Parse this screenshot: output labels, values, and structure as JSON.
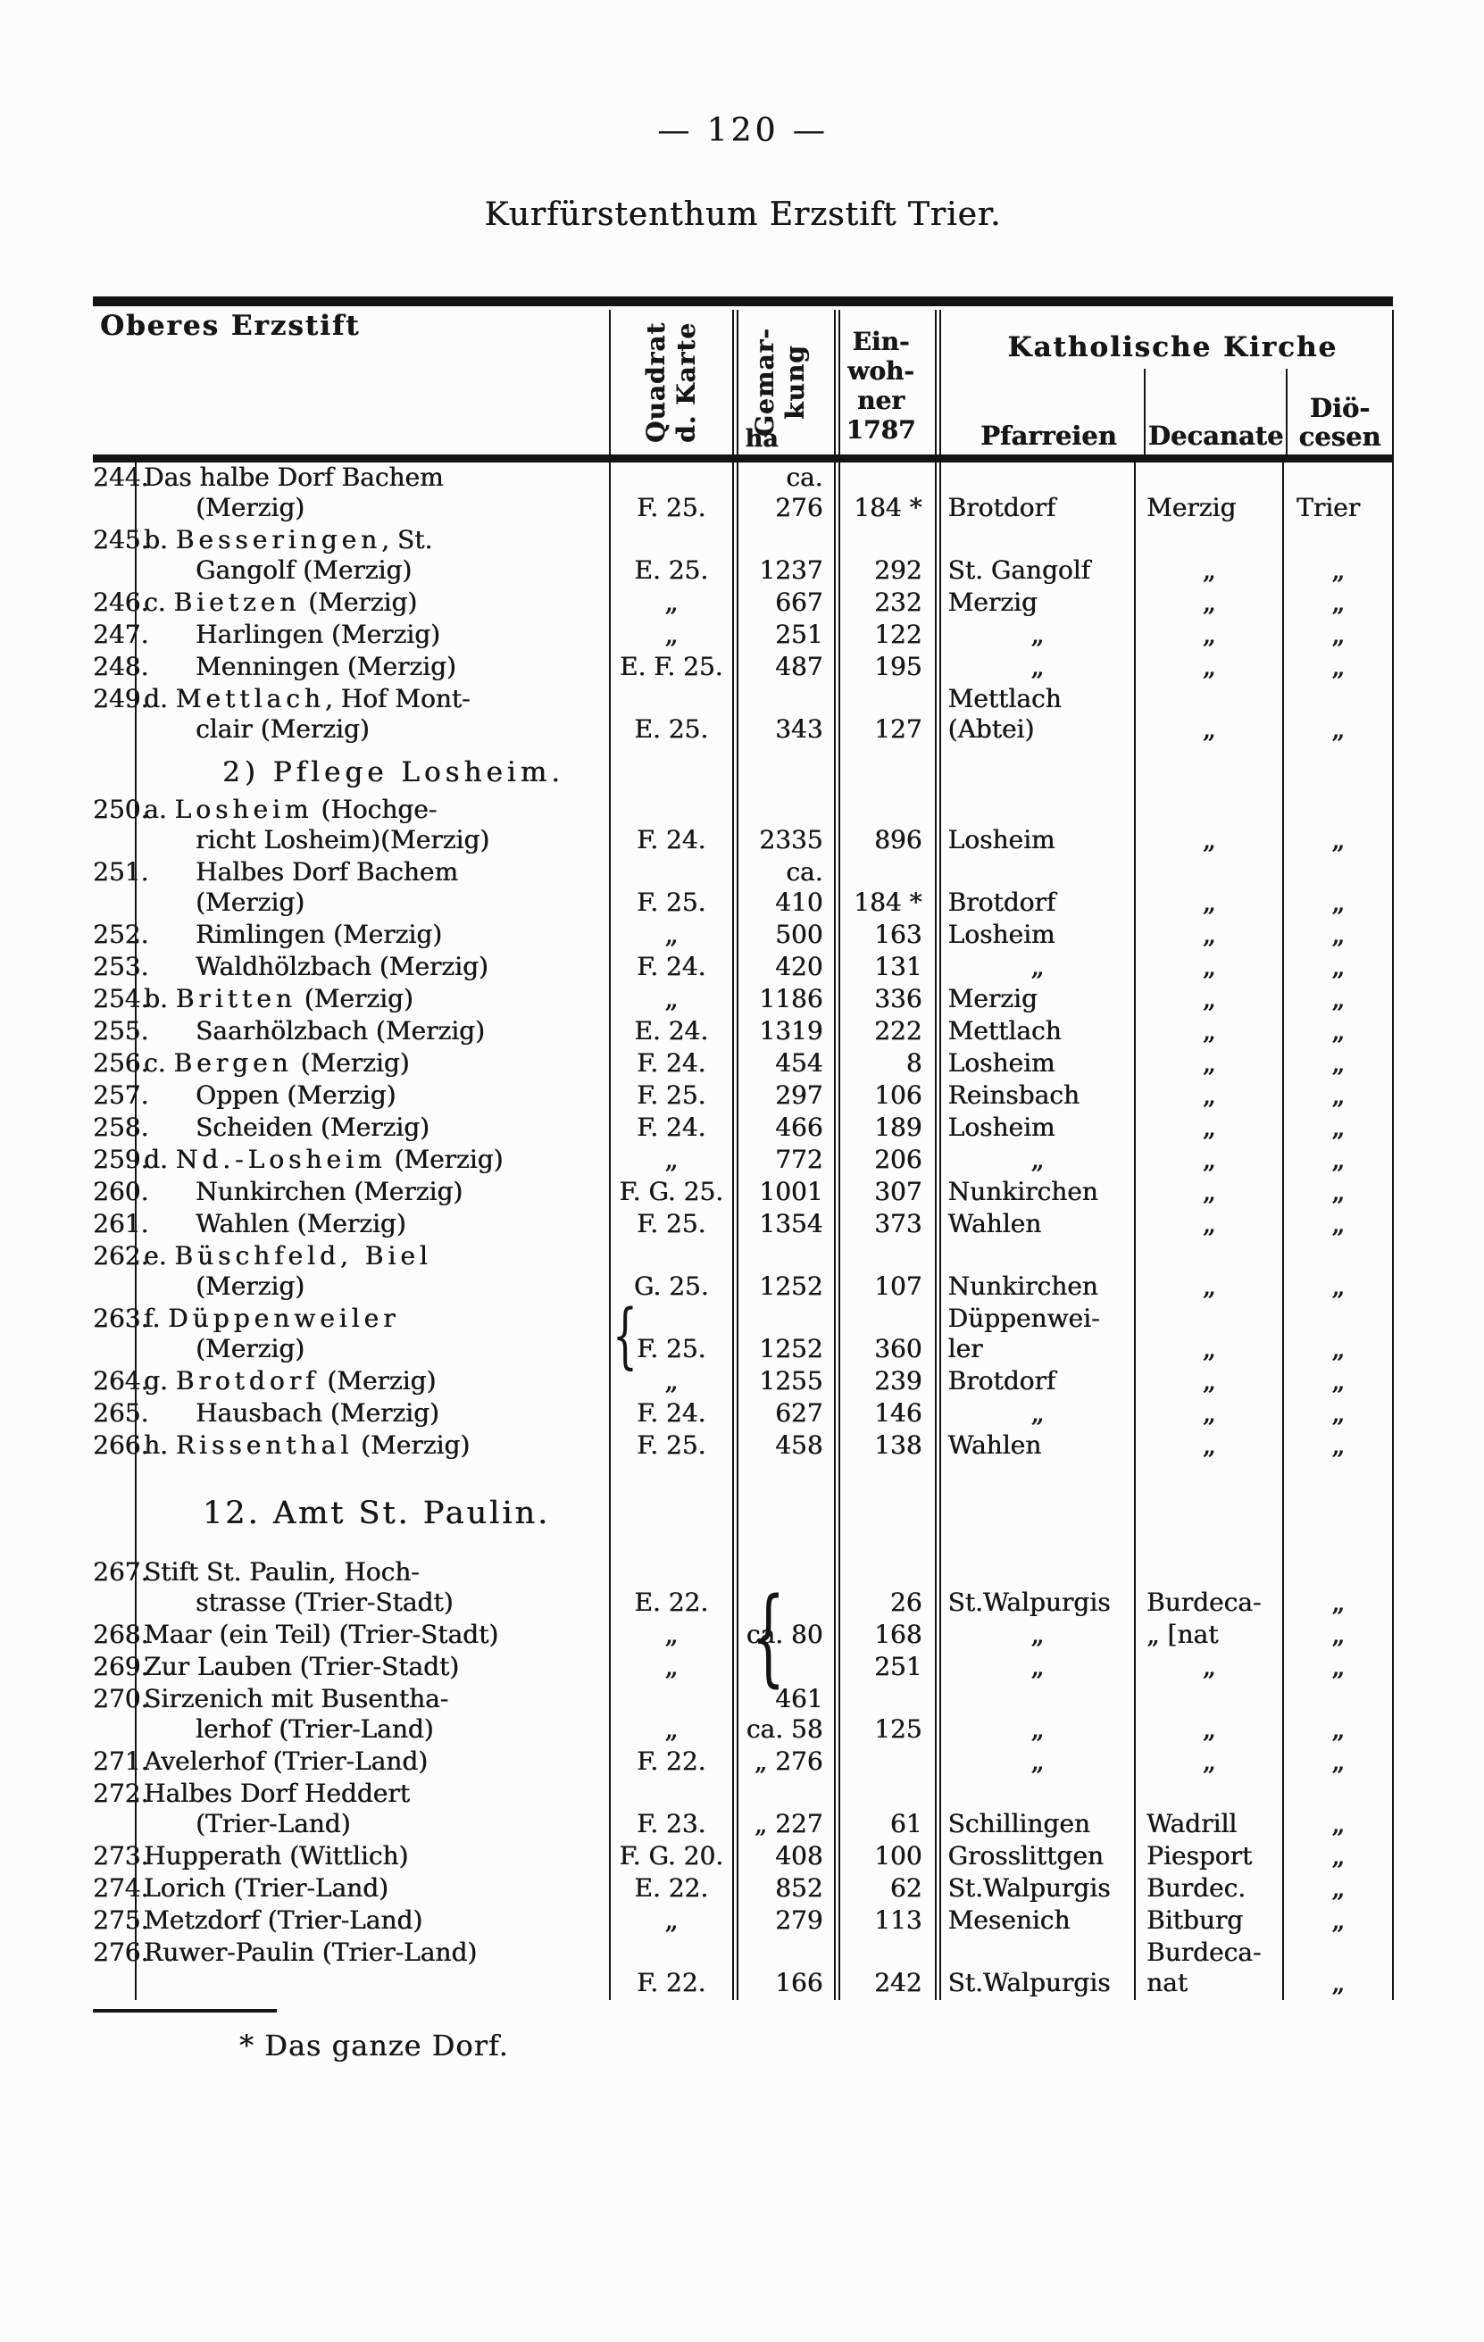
{
  "page": {
    "number": "—  120  —",
    "title": "Kurfürstenthum Erzstift Trier.",
    "footnote": "* Das ganze Dorf."
  },
  "table": {
    "header": {
      "region": "Oberes Erzstift",
      "quadrant": "Quadrat\nd. Karte",
      "area": "Gemar-\nkung",
      "area_unit": "ha",
      "population": "Ein-\nwoh-\nner\n1787",
      "church_group": "Katholische Kirche",
      "parishes": "Pfarreien",
      "deaneries": "Decanate",
      "dioceses": "Diö-\ncesen"
    },
    "rows": [
      {
        "no": "244.",
        "name": [
          {
            "seg": [
              {
                "t": "Das halbe Dorf Bachem"
              }
            ]
          },
          {
            "seg": [
              {
                "t": "(Merzig)"
              }
            ],
            "cont": true
          }
        ],
        "quad": "F. 25.",
        "gem": [
          "ca. 276"
        ],
        "einw": "184 *",
        "pfar": [
          "Brotdorf"
        ],
        "dec": [
          "Merzig"
        ],
        "dio": "Trier"
      },
      {
        "no": "245.",
        "name": [
          {
            "seg": [
              {
                "t": "b. "
              },
              {
                "t": "Besseringen",
                "sp": true
              },
              {
                "t": ", St."
              }
            ]
          },
          {
            "seg": [
              {
                "t": "Gangolf (Merzig)"
              }
            ],
            "cont": true
          }
        ],
        "quad": "E. 25.",
        "gem": [
          "1237"
        ],
        "einw": "292",
        "pfar": [
          "St. Gangolf"
        ],
        "dec": [
          "„"
        ],
        "dio": "„"
      },
      {
        "no": "246.",
        "name": [
          {
            "seg": [
              {
                "t": "c. "
              },
              {
                "t": "Bietzen",
                "sp": true
              },
              {
                "t": " (Merzig)"
              }
            ]
          }
        ],
        "quad": "„",
        "gem": [
          "667"
        ],
        "einw": "232",
        "pfar": [
          "Merzig"
        ],
        "dec": [
          "„"
        ],
        "dio": "„"
      },
      {
        "no": "247.",
        "name": [
          {
            "seg": [
              {
                "t": "Harlingen (Merzig)"
              }
            ],
            "cont": true
          }
        ],
        "quad": "„",
        "gem": [
          "251"
        ],
        "einw": "122",
        "pfar": [
          "„"
        ],
        "dec": [
          "„"
        ],
        "dio": "„"
      },
      {
        "no": "248.",
        "name": [
          {
            "seg": [
              {
                "t": "Menningen (Merzig)"
              }
            ],
            "cont": true
          }
        ],
        "quad": "E. F. 25.",
        "gem": [
          "487"
        ],
        "einw": "195",
        "pfar": [
          "„"
        ],
        "dec": [
          "„"
        ],
        "dio": "„"
      },
      {
        "no": "249.",
        "name": [
          {
            "seg": [
              {
                "t": "d. "
              },
              {
                "t": "Mettlach",
                "sp": true
              },
              {
                "t": ", Hof Mont-"
              }
            ]
          },
          {
            "seg": [
              {
                "t": "clair (Merzig)"
              }
            ],
            "cont": true
          }
        ],
        "quad": "E. 25.",
        "gem": [
          "343"
        ],
        "einw": "127",
        "pfar": [
          "Mettlach",
          "(Abtei)"
        ],
        "dec": [
          "„"
        ],
        "dio": "„"
      },
      {
        "section": "2) Pflege Losheim.",
        "style": "small"
      },
      {
        "no": "250.",
        "name": [
          {
            "seg": [
              {
                "t": "a. "
              },
              {
                "t": "Losheim",
                "sp": true
              },
              {
                "t": " (Hochge-"
              }
            ]
          },
          {
            "seg": [
              {
                "t": "richt Losheim)(Merzig)"
              }
            ],
            "cont": true
          }
        ],
        "quad": "F. 24.",
        "gem": [
          "2335"
        ],
        "einw": "896",
        "pfar": [
          "Losheim"
        ],
        "dec": [
          "„"
        ],
        "dio": "„"
      },
      {
        "no": "251.",
        "name": [
          {
            "seg": [
              {
                "t": "Halbes Dorf Bachem"
              }
            ],
            "cont": true
          },
          {
            "seg": [
              {
                "t": "(Merzig)"
              }
            ],
            "cont": true
          }
        ],
        "quad": "F. 25.",
        "gem": [
          "ca. 410"
        ],
        "einw": "184 *",
        "pfar": [
          "Brotdorf"
        ],
        "dec": [
          "„"
        ],
        "dio": "„"
      },
      {
        "no": "252.",
        "name": [
          {
            "seg": [
              {
                "t": "Rimlingen (Merzig)"
              }
            ],
            "cont": true
          }
        ],
        "quad": "„",
        "gem": [
          "500"
        ],
        "einw": "163",
        "pfar": [
          "Losheim"
        ],
        "dec": [
          "„"
        ],
        "dio": "„"
      },
      {
        "no": "253.",
        "name": [
          {
            "seg": [
              {
                "t": "Waldhölzbach (Merzig)"
              }
            ],
            "cont": true
          }
        ],
        "quad": "F. 24.",
        "gem": [
          "420"
        ],
        "einw": "131",
        "pfar": [
          "„"
        ],
        "dec": [
          "„"
        ],
        "dio": "„"
      },
      {
        "no": "254.",
        "name": [
          {
            "seg": [
              {
                "t": "b. "
              },
              {
                "t": "Britten",
                "sp": true
              },
              {
                "t": " (Merzig)"
              }
            ]
          }
        ],
        "quad": "„",
        "gem": [
          "1186"
        ],
        "einw": "336",
        "pfar": [
          "Merzig"
        ],
        "dec": [
          "„"
        ],
        "dio": "„"
      },
      {
        "no": "255.",
        "name": [
          {
            "seg": [
              {
                "t": "Saarhölzbach (Merzig)"
              }
            ],
            "cont": true
          }
        ],
        "quad": "E. 24.",
        "gem": [
          "1319"
        ],
        "einw": "222",
        "pfar": [
          "Mettlach"
        ],
        "dec": [
          "„"
        ],
        "dio": "„"
      },
      {
        "no": "256.",
        "name": [
          {
            "seg": [
              {
                "t": "c. "
              },
              {
                "t": "Bergen",
                "sp": true
              },
              {
                "t": " (Merzig)"
              }
            ]
          }
        ],
        "quad": "F. 24.",
        "gem": [
          "454"
        ],
        "einw": "8",
        "pfar": [
          "Losheim"
        ],
        "dec": [
          "„"
        ],
        "dio": "„"
      },
      {
        "no": "257.",
        "name": [
          {
            "seg": [
              {
                "t": "Oppen (Merzig)"
              }
            ],
            "cont": true
          }
        ],
        "quad": "F. 25.",
        "gem": [
          "297"
        ],
        "einw": "106",
        "pfar": [
          "Reinsbach"
        ],
        "dec": [
          "„"
        ],
        "dio": "„"
      },
      {
        "no": "258.",
        "name": [
          {
            "seg": [
              {
                "t": "Scheiden (Merzig)"
              }
            ],
            "cont": true
          }
        ],
        "quad": "F. 24.",
        "gem": [
          "466"
        ],
        "einw": "189",
        "pfar": [
          "Losheim"
        ],
        "dec": [
          "„"
        ],
        "dio": "„"
      },
      {
        "no": "259.",
        "name": [
          {
            "seg": [
              {
                "t": "d. "
              },
              {
                "t": "Nd.-Losheim",
                "sp": true
              },
              {
                "t": " (Merzig)"
              }
            ]
          }
        ],
        "quad": "„",
        "gem": [
          "772"
        ],
        "einw": "206",
        "pfar": [
          "„"
        ],
        "dec": [
          "„"
        ],
        "dio": "„"
      },
      {
        "no": "260.",
        "name": [
          {
            "seg": [
              {
                "t": "Nunkirchen (Merzig)"
              }
            ],
            "cont": true
          }
        ],
        "quad": "F. G. 25.",
        "gem": [
          "1001"
        ],
        "einw": "307",
        "pfar": [
          "Nunkirchen"
        ],
        "dec": [
          "„"
        ],
        "dio": "„"
      },
      {
        "no": "261.",
        "name": [
          {
            "seg": [
              {
                "t": "Wahlen (Merzig)"
              }
            ],
            "cont": true
          }
        ],
        "quad": "F. 25.",
        "gem": [
          "1354"
        ],
        "einw": "373",
        "pfar": [
          "Wahlen"
        ],
        "dec": [
          "„"
        ],
        "dio": "„"
      },
      {
        "no": "262.",
        "name": [
          {
            "seg": [
              {
                "t": "e. "
              },
              {
                "t": "Büschfeld, Biel",
                "sp": true
              }
            ]
          },
          {
            "seg": [
              {
                "t": "(Merzig)"
              }
            ],
            "cont": true
          }
        ],
        "quad": "G. 25.",
        "gem": [
          "1252"
        ],
        "einw": "107",
        "pfar": [
          "Nunkirchen"
        ],
        "dec": [
          "„"
        ],
        "dio": "„"
      },
      {
        "no": "263.",
        "name": [
          {
            "seg": [
              {
                "t": "f. "
              },
              {
                "t": "Düppenweiler",
                "sp": true
              }
            ]
          },
          {
            "seg": [
              {
                "t": "(Merzig)"
              }
            ],
            "cont": true
          }
        ],
        "quad": "F. 25.",
        "quadBrace": true,
        "gem": [
          "1252"
        ],
        "einw": "360",
        "pfar": [
          "Düppenwei-",
          "ler"
        ],
        "dec": [
          "„"
        ],
        "dio": "„"
      },
      {
        "no": "264.",
        "name": [
          {
            "seg": [
              {
                "t": "g. "
              },
              {
                "t": "Brotdorf",
                "sp": true
              },
              {
                "t": " (Merzig)"
              }
            ]
          }
        ],
        "quad": "„",
        "gem": [
          "1255"
        ],
        "einw": "239",
        "pfar": [
          "Brotdorf"
        ],
        "dec": [
          "„"
        ],
        "dio": "„"
      },
      {
        "no": "265.",
        "name": [
          {
            "seg": [
              {
                "t": "Hausbach (Merzig)"
              }
            ],
            "cont": true
          }
        ],
        "quad": "F. 24.",
        "gem": [
          "627"
        ],
        "einw": "146",
        "pfar": [
          "„"
        ],
        "dec": [
          "„"
        ],
        "dio": "„"
      },
      {
        "no": "266.",
        "name": [
          {
            "seg": [
              {
                "t": "h. "
              },
              {
                "t": "Rissenthal",
                "sp": true
              },
              {
                "t": " (Merzig)"
              }
            ]
          }
        ],
        "quad": "F. 25.",
        "gem": [
          "458"
        ],
        "einw": "138",
        "pfar": [
          "Wahlen"
        ],
        "dec": [
          "„"
        ],
        "dio": "„"
      },
      {
        "section": "12. Amt St. Paulin.",
        "style": "big"
      },
      {
        "no": "267.",
        "name": [
          {
            "seg": [
              {
                "t": "Stift St. Paulin, Hoch-"
              }
            ]
          },
          {
            "seg": [
              {
                "t": "strasse (Trier-Stadt)"
              }
            ],
            "cont": true
          }
        ],
        "quad": "E. 22.",
        "gem": [
          ""
        ],
        "einw": "26",
        "pfar": [
          "St.Walpurgis"
        ],
        "dec": [
          "Burdeca-"
        ],
        "dio": "„"
      },
      {
        "no": "268.",
        "name": [
          {
            "seg": [
              {
                "t": "Maar (ein Teil) (Trier-Stadt)"
              }
            ]
          }
        ],
        "quad": "„",
        "gem": [
          "ca. 80"
        ],
        "gemBrace": true,
        "einw": "168",
        "pfar": [
          "„"
        ],
        "dec": [
          "„ [nat"
        ],
        "dio": "„"
      },
      {
        "no": "269.",
        "name": [
          {
            "seg": [
              {
                "t": "Zur Lauben (Trier-Stadt)"
              }
            ]
          }
        ],
        "quad": "„",
        "gem": [
          ""
        ],
        "einw": "251",
        "pfar": [
          "„"
        ],
        "dec": [
          "„"
        ],
        "dio": "„"
      },
      {
        "no": "270.",
        "name": [
          {
            "seg": [
              {
                "t": "Sirzenich mit Busentha-"
              }
            ]
          },
          {
            "seg": [
              {
                "t": "lerhof (Trier-Land)"
              }
            ],
            "cont": true
          }
        ],
        "quad": "„",
        "gem": [
          "461",
          "ca. 58"
        ],
        "einw": "125",
        "pfar": [
          "„"
        ],
        "dec": [
          "„"
        ],
        "dio": "„"
      },
      {
        "no": "271.",
        "name": [
          {
            "seg": [
              {
                "t": "Avelerhof (Trier-Land)"
              }
            ]
          }
        ],
        "quad": "F. 22.",
        "gem": [
          "„ 276"
        ],
        "einw": "",
        "pfar": [
          "„"
        ],
        "dec": [
          "„"
        ],
        "dio": "„"
      },
      {
        "no": "272.",
        "name": [
          {
            "seg": [
              {
                "t": "Halbes Dorf Heddert"
              }
            ]
          },
          {
            "seg": [
              {
                "t": "(Trier-Land)"
              }
            ],
            "cont": true
          }
        ],
        "quad": "F. 23.",
        "gem": [
          "„ 227"
        ],
        "einw": "61",
        "pfar": [
          "Schillingen"
        ],
        "dec": [
          "Wadrill"
        ],
        "dio": "„"
      },
      {
        "no": "273.",
        "name": [
          {
            "seg": [
              {
                "t": "Hupperath (Wittlich)"
              }
            ]
          }
        ],
        "quad": "F. G. 20.",
        "gem": [
          "408"
        ],
        "einw": "100",
        "pfar": [
          "Grosslittgen"
        ],
        "dec": [
          "Piesport"
        ],
        "dio": "„"
      },
      {
        "no": "274.",
        "name": [
          {
            "seg": [
              {
                "t": "Lorich (Trier-Land)"
              }
            ]
          }
        ],
        "quad": "E. 22.",
        "gem": [
          "852"
        ],
        "einw": "62",
        "pfar": [
          "St.Walpurgis"
        ],
        "dec": [
          "Burdec."
        ],
        "dio": "„"
      },
      {
        "no": "275.",
        "name": [
          {
            "seg": [
              {
                "t": "Metzdorf (Trier-Land)"
              }
            ]
          }
        ],
        "quad": "„",
        "gem": [
          "279"
        ],
        "einw": "113",
        "pfar": [
          "Mesenich"
        ],
        "dec": [
          "Bitburg"
        ],
        "dio": "„"
      },
      {
        "no": "276.",
        "name": [
          {
            "seg": [
              {
                "t": "Ruwer-Paulin (Trier-Land)"
              }
            ]
          }
        ],
        "quad": "F. 22.",
        "gem": [
          "166"
        ],
        "einw": "242",
        "pfar": [
          "St.Walpurgis"
        ],
        "dec": [
          "Burdeca-",
          "nat"
        ],
        "dio": "„"
      }
    ]
  }
}
